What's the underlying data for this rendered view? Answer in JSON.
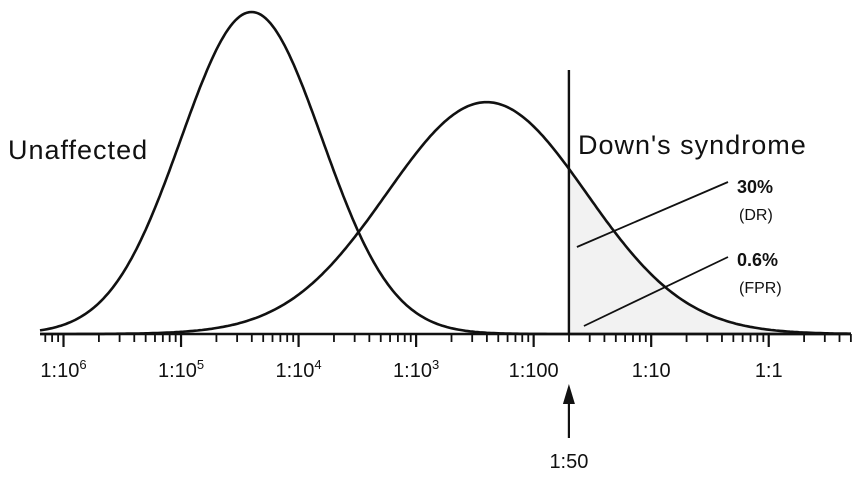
{
  "chart_data": {
    "type": "line",
    "title": "",
    "xlabel": "",
    "ylabel": "",
    "x_scale": "log10",
    "x_ticks": [
      {
        "value": -6,
        "base": "1:10",
        "exp": "6"
      },
      {
        "value": -5,
        "base": "1:10",
        "exp": "5"
      },
      {
        "value": -4,
        "base": "1:10",
        "exp": "4"
      },
      {
        "value": -3,
        "base": "1:10",
        "exp": "3"
      },
      {
        "value": -2,
        "base": "1:100",
        "exp": ""
      },
      {
        "value": -1,
        "base": "1:10",
        "exp": ""
      },
      {
        "value": 0,
        "base": "1:1",
        "exp": ""
      }
    ],
    "xlim": [
      -6.2,
      0.7
    ],
    "series": [
      {
        "name": "Unaffected",
        "mean": -4.4,
        "sd": 0.6,
        "peak": 1.0
      },
      {
        "name": "Down's syndrome",
        "mean": -2.4,
        "sd": 0.85,
        "peak": 0.72
      }
    ],
    "cutoff": {
      "value": -1.7,
      "label": "1:50"
    },
    "annotations": [
      {
        "value": "30%",
        "sub": "(DR)"
      },
      {
        "value": "0.6%",
        "sub": "(FPR)"
      }
    ],
    "grid": false,
    "legend": "none"
  }
}
